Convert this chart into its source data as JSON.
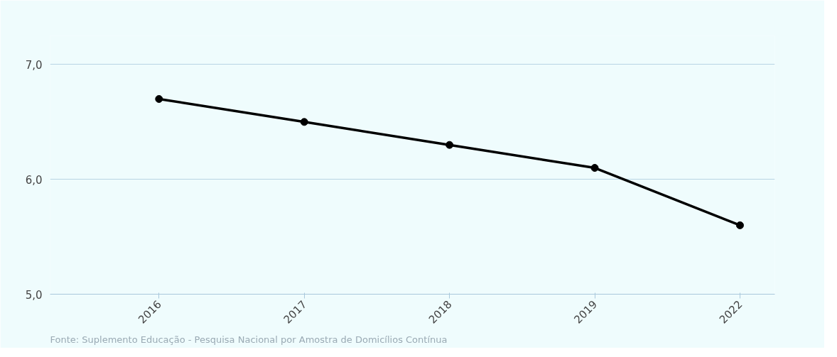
{
  "chart_data": {
    "type": "line",
    "categories": [
      "2016",
      "2017",
      "2018",
      "2019",
      "2022"
    ],
    "series": [
      {
        "color": "#000000",
        "values": [
          6.7,
          6.5,
          6.3,
          6.1,
          5.6
        ]
      }
    ],
    "ylim": [
      5.0,
      7.25
    ],
    "yticks": [
      {
        "value": 5,
        "label": "5,0"
      },
      {
        "value": 6,
        "label": "6,0"
      },
      {
        "value": 7,
        "label": "7,0"
      }
    ],
    "grid": "y",
    "marker": "circle",
    "line_style": "solid",
    "annotations": [
      "Fonte: Suplemento Educação - Pesquisa Nacional por Amostra de Domicílios Contínua"
    ]
  }
}
